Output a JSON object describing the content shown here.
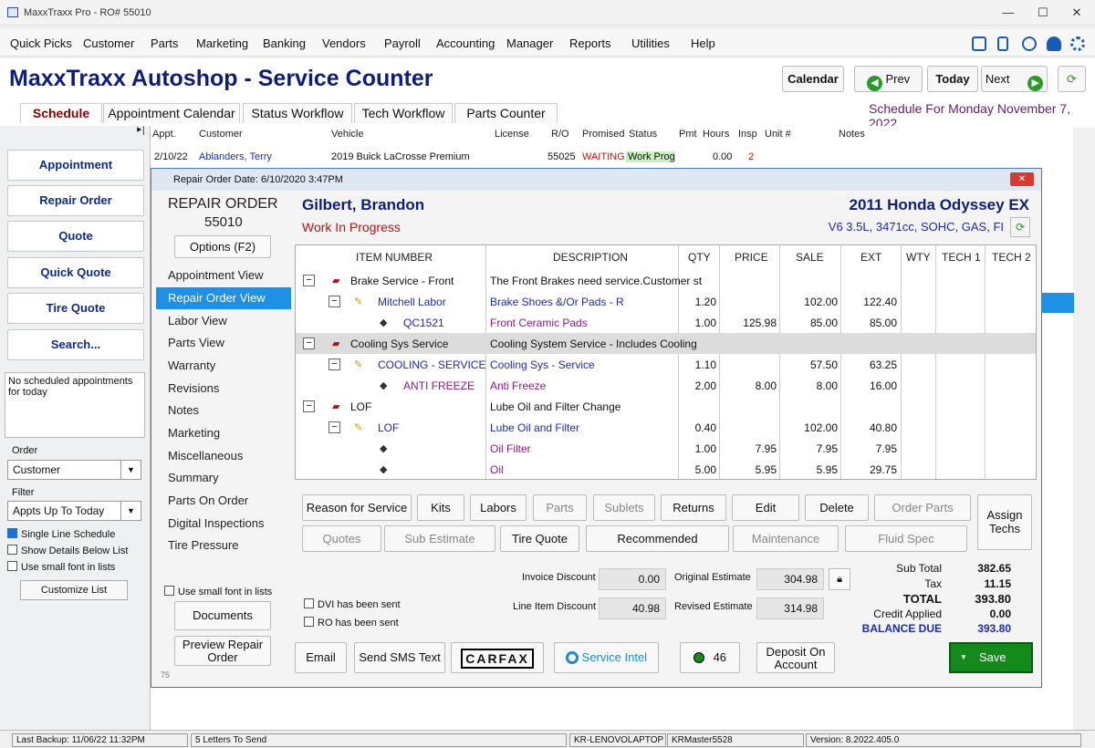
{
  "window": {
    "title": "MaxxTraxx Pro - RO# 55010"
  },
  "menu": [
    "Quick Picks",
    "Customer",
    "Parts",
    "Marketing",
    "Banking",
    "Vendors",
    "Payroll",
    "Accounting",
    "Manager",
    "Reports",
    "Utilities",
    "Help"
  ],
  "header": {
    "title": "MaxxTraxx Autoshop - Service Counter",
    "calendar": "Calendar",
    "prev": "Prev",
    "today": "Today",
    "next": "Next"
  },
  "tabs": [
    "Schedule",
    "Appointment Calendar",
    "Status Workflow",
    "Tech Workflow",
    "Parts Counter"
  ],
  "schedule_for": "Schedule For Monday November  7, 2022",
  "left": {
    "buttons": [
      "Appointment",
      "Repair Order",
      "Quote",
      "Quick Quote",
      "Tire Quote",
      "Search..."
    ],
    "no_appts": "No scheduled appointments for today",
    "order_label": "Order",
    "order_value": "Customer",
    "filter_label": "Filter",
    "filter_value": "Appts Up To Today",
    "single_line": "Single Line Schedule",
    "show_details": "Show Details Below List",
    "small_font": "Use small font in lists",
    "customize": "Customize List"
  },
  "grid": {
    "headers": [
      "Appt.",
      "Customer",
      "Vehicle",
      "License",
      "R/O",
      "Promised",
      "Status",
      "Pmt",
      "Hours",
      "Insp",
      "Unit #",
      "Notes"
    ],
    "row": [
      "2/10/22",
      "Ablanders, Terry",
      "2019 Buick  LaCrosse Premium",
      "",
      "55025",
      "WAITING",
      "Work Prog",
      "",
      "0.00",
      "2",
      "",
      ""
    ]
  },
  "modal": {
    "title": "Repair Order Date: 6/10/2020  3:47PM",
    "ro_label": "REPAIR ORDER",
    "ro_number": "55010",
    "options": "Options (F2)",
    "customer": "Gilbert, Brandon",
    "status": "Work In Progress",
    "vehicle": "2011 Honda  Odyssey EX",
    "engine": "V6 3.5L, 3471cc, SOHC, GAS, FI",
    "nav": [
      "Appointment View",
      "Repair Order View",
      "Labor View",
      "Parts View",
      "Warranty",
      "Revisions",
      "Notes",
      "Marketing",
      "Miscellaneous",
      "Summary",
      "Parts On Order",
      "Digital Inspections",
      "Tire Pressure"
    ],
    "small_font": "Use small font in lists",
    "documents": "Documents",
    "preview": "Preview Repair Order",
    "dvi": "DVI has been sent",
    "ro_sent": "RO has been sent",
    "footer_num": "75",
    "cols": [
      "ITEM NUMBER",
      "DESCRIPTION",
      "QTY",
      "PRICE",
      "SALE",
      "EXT",
      "WTY",
      "TECH 1",
      "TECH 2"
    ],
    "lines": [
      {
        "item": "Brake Service - Front",
        "desc": "The Front Brakes need service.Customer st",
        "qty": "",
        "price": "",
        "sale": "",
        "ext": "",
        "level": 0
      },
      {
        "item": "Mitchell Labor",
        "desc": "Brake Shoes &/Or Pads - R",
        "qty": "1.20",
        "price": "",
        "sale": "102.00",
        "ext": "122.40",
        "level": 1
      },
      {
        "item": "QC1521",
        "desc": "Front Ceramic Pads",
        "qty": "1.00",
        "price": "125.98",
        "sale": "85.00",
        "ext": "85.00",
        "level": 2
      },
      {
        "item": "Cooling Sys Service",
        "desc": "Cooling System Service - Includes Cooling",
        "qty": "",
        "price": "",
        "sale": "",
        "ext": "",
        "level": 0
      },
      {
        "item": "COOLING - SERVICE",
        "desc": "Cooling Sys - Service",
        "qty": "1.10",
        "price": "",
        "sale": "57.50",
        "ext": "63.25",
        "level": 1
      },
      {
        "item": "ANTI FREEZE",
        "desc": "Anti Freeze",
        "qty": "2.00",
        "price": "8.00",
        "sale": "8.00",
        "ext": "16.00",
        "level": 2
      },
      {
        "item": "LOF",
        "desc": "Lube Oil and Filter Change",
        "qty": "",
        "price": "",
        "sale": "",
        "ext": "",
        "level": 0
      },
      {
        "item": "LOF",
        "desc": "Lube Oil and Filter",
        "qty": "0.40",
        "price": "",
        "sale": "102.00",
        "ext": "40.80",
        "level": 1
      },
      {
        "item": "",
        "desc": "Oil Filter",
        "qty": "1.00",
        "price": "7.95",
        "sale": "7.95",
        "ext": "7.95",
        "level": 2
      },
      {
        "item": "",
        "desc": "Oil",
        "qty": "5.00",
        "price": "5.95",
        "sale": "5.95",
        "ext": "29.75",
        "level": 2
      }
    ],
    "actions1": [
      "Reason for Service",
      "Kits",
      "Labors",
      "Parts",
      "Sublets",
      "Returns",
      "Edit",
      "Delete",
      "Order Parts"
    ],
    "actions2": [
      "Quotes",
      "Sub Estimate",
      "Tire Quote",
      "Recommended",
      "Maintenance",
      "Fluid Spec"
    ],
    "assign": "Assign Techs",
    "invoice_discount_label": "Invoice Discount",
    "invoice_discount": "0.00",
    "line_discount_label": "Line Item Discount",
    "line_discount": "40.98",
    "orig_est_label": "Original Estimate",
    "orig_est": "304.98",
    "rev_est_label": "Revised Estimate",
    "rev_est": "314.98",
    "subtotal_label": "Sub Total",
    "subtotal": "382.65",
    "tax_label": "Tax",
    "tax": "11.15",
    "total_label": "TOTAL",
    "total": "393.80",
    "credit_label": "Credit Applied",
    "credit": "0.00",
    "balance_label": "BALANCE DUE",
    "balance": "393.80",
    "email": "Email",
    "sms": "Send SMS Text",
    "carfax": "CARFAX",
    "service_intel": "Service Intel",
    "count": "46",
    "deposit": "Deposit On Account",
    "save": "Save"
  },
  "statusbar": [
    "Last Backup: 11/06/22  11:32PM",
    "5 Letters To Send",
    "KR-LENOVOLAPTOP",
    "KRMaster5528",
    "Version:  8.2022.405.0"
  ],
  "colors": {
    "brand": "#0e1e7a",
    "accent": "#1e90e6",
    "save": "#138a1b"
  }
}
